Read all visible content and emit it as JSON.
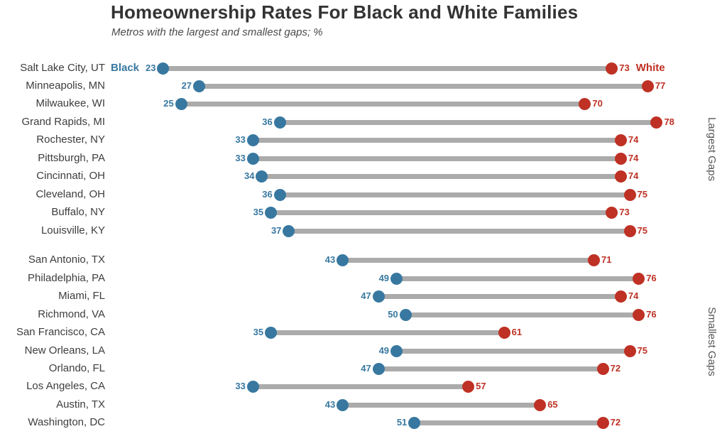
{
  "title": "Homeownership Rates For Black and White Families",
  "subtitle": "Metros with the largest and smallest gaps; %",
  "legend": {
    "black_label": "Black",
    "white_label": "White"
  },
  "colors": {
    "black_series": "#3878A0",
    "white_series": "#BE3124",
    "connector": "#ABABAB",
    "title_text": "#333333",
    "metro_text": "#3D3D3D",
    "group_text": "#555555"
  },
  "chart_data": {
    "type": "dumbbell",
    "unit": "%",
    "series": [
      {
        "name": "Black",
        "color": "#3878A0"
      },
      {
        "name": "White",
        "color": "#BE3124"
      }
    ],
    "value_domain": [
      23,
      78
    ],
    "legend_position": "first-row-inline",
    "grid": false,
    "groups": [
      {
        "label": "Largest Gaps",
        "rows": [
          {
            "metro": "Salt Lake City, UT",
            "black": 23,
            "white": 73
          },
          {
            "metro": "Minneapolis, MN",
            "black": 27,
            "white": 77
          },
          {
            "metro": "Milwaukee, WI",
            "black": 25,
            "white": 70
          },
          {
            "metro": "Grand Rapids, MI",
            "black": 36,
            "white": 78
          },
          {
            "metro": "Rochester, NY",
            "black": 33,
            "white": 74
          },
          {
            "metro": "Pittsburgh, PA",
            "black": 33,
            "white": 74
          },
          {
            "metro": "Cincinnati, OH",
            "black": 34,
            "white": 74
          },
          {
            "metro": "Cleveland, OH",
            "black": 36,
            "white": 75
          },
          {
            "metro": "Buffalo, NY",
            "black": 35,
            "white": 73
          },
          {
            "metro": "Louisville, KY",
            "black": 37,
            "white": 75
          }
        ]
      },
      {
        "label": "Smallest Gaps",
        "rows": [
          {
            "metro": "San Antonio, TX",
            "black": 43,
            "white": 71
          },
          {
            "metro": "Philadelphia, PA",
            "black": 49,
            "white": 76
          },
          {
            "metro": "Miami, FL",
            "black": 47,
            "white": 74
          },
          {
            "metro": "Richmond, VA",
            "black": 50,
            "white": 76
          },
          {
            "metro": "San Francisco, CA",
            "black": 35,
            "white": 61
          },
          {
            "metro": "New Orleans, LA",
            "black": 49,
            "white": 75
          },
          {
            "metro": "Orlando, FL",
            "black": 47,
            "white": 72
          },
          {
            "metro": "Los Angeles, CA",
            "black": 33,
            "white": 57
          },
          {
            "metro": "Austin, TX",
            "black": 43,
            "white": 65
          },
          {
            "metro": "Washington, DC",
            "black": 51,
            "white": 72
          }
        ]
      }
    ]
  }
}
